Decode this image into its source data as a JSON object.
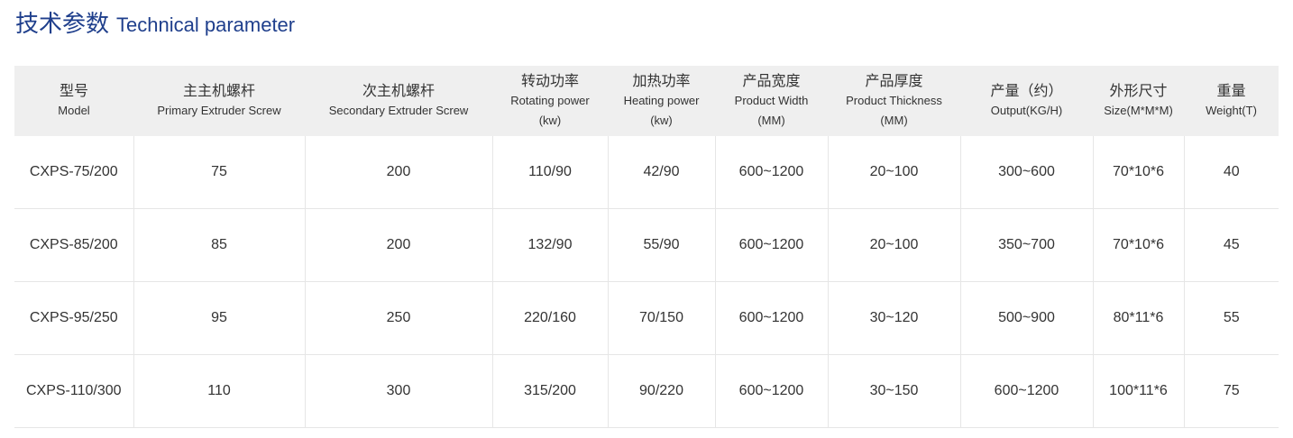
{
  "title": {
    "cn": "技术参数",
    "en": "Technical parameter"
  },
  "table": {
    "headers": [
      {
        "cn": "型号",
        "en": "Model",
        "unit": ""
      },
      {
        "cn": "主主机螺杆",
        "en": "Primary Extruder Screw",
        "unit": ""
      },
      {
        "cn": "次主机螺杆",
        "en": "Secondary Extruder Screw",
        "unit": ""
      },
      {
        "cn": "转动功率",
        "en": "Rotating power",
        "unit": "(kw)"
      },
      {
        "cn": "加热功率",
        "en": "Heating power",
        "unit": "(kw)"
      },
      {
        "cn": "产品宽度",
        "en": "Product Width",
        "unit": "(MM)"
      },
      {
        "cn": "产品厚度",
        "en": "Product Thickness",
        "unit": "(MM)"
      },
      {
        "cn": "产量（约）",
        "en": "Output(KG/H)",
        "unit": ""
      },
      {
        "cn": "外形尺寸",
        "en": "Size(M*M*M)",
        "unit": ""
      },
      {
        "cn": "重量",
        "en": "Weight(T)",
        "unit": ""
      }
    ],
    "rows": [
      [
        "CXPS-75/200",
        "75",
        "200",
        "110/90",
        "42/90",
        "600~1200",
        "20~100",
        "300~600",
        "70*10*6",
        "40"
      ],
      [
        "CXPS-85/200",
        "85",
        "200",
        "132/90",
        "55/90",
        "600~1200",
        "20~100",
        "350~700",
        "70*10*6",
        "45"
      ],
      [
        "CXPS-95/250",
        "95",
        "250",
        "220/160",
        "70/150",
        "600~1200",
        "30~120",
        "500~900",
        "80*11*6",
        "55"
      ],
      [
        "CXPS-110/300",
        "110",
        "300",
        "315/200",
        "90/220",
        "600~1200",
        "30~150",
        "600~1200",
        "100*11*6",
        "75"
      ]
    ]
  }
}
